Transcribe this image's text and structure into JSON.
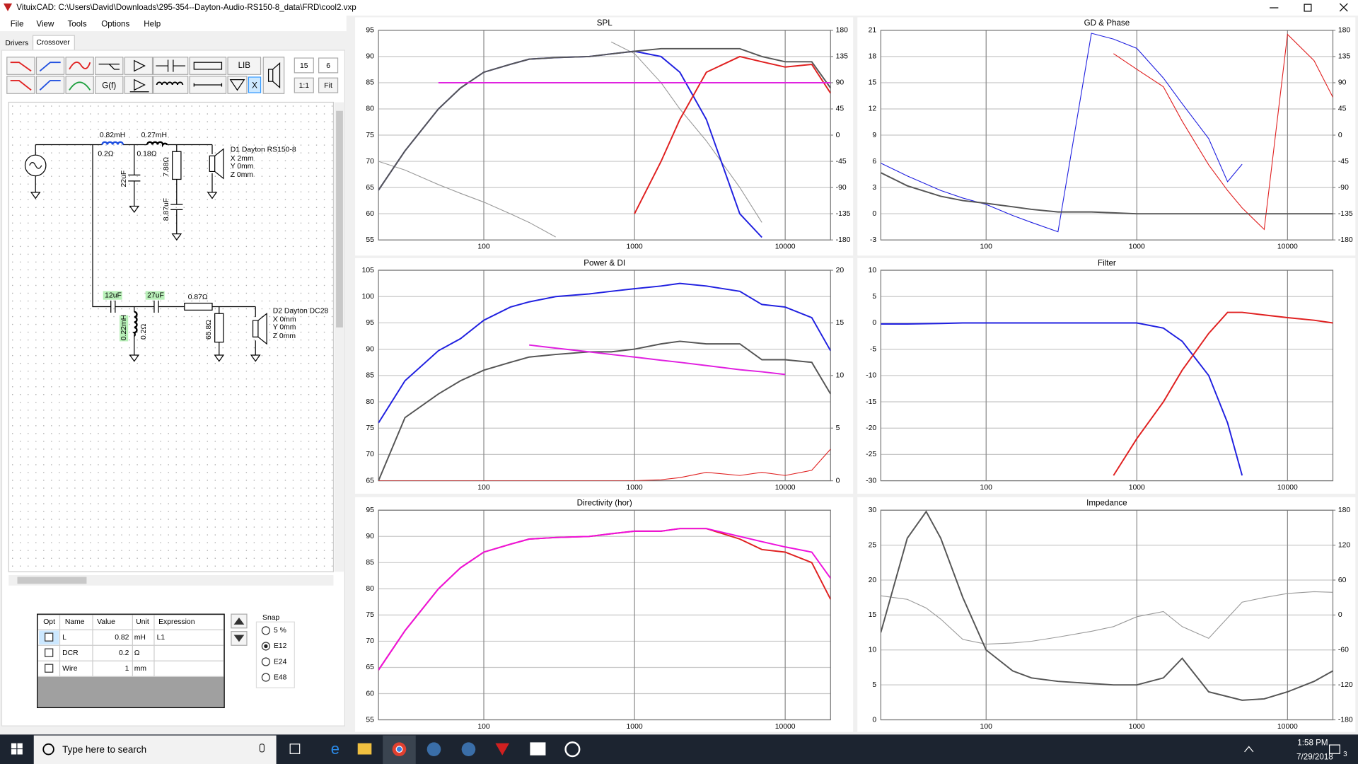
{
  "window": {
    "title": "VituixCAD: C:\\Users\\David\\Downloads\\295-354--Dayton-Audio-RS150-8_data\\FRD\\cool2.vxp"
  },
  "menu": [
    "File",
    "View",
    "Tools",
    "Options",
    "Help"
  ],
  "tabs": [
    "Drivers",
    "Crossover"
  ],
  "toolbar": {
    "buttons": [
      "G(f)",
      "LIB",
      "X"
    ],
    "fields": [
      15,
      6
    ],
    "zoom": [
      "1:1",
      "Fit"
    ]
  },
  "schematic": {
    "labels": [
      "0.82mH",
      "0.2Ω",
      "0.27mH",
      "0.18Ω",
      "22uF",
      "7.88Ω",
      "8.87uF",
      "D1 Dayton RS150-8",
      "X 2mm",
      "Y 0mm",
      "Z 0mm",
      "12uF",
      "27uF",
      "0.87Ω",
      "0.22mH",
      "0.2Ω",
      "65.8Ω",
      "D2 Dayton DC28",
      "X 0mm",
      "Y 0mm",
      "Z 0mm"
    ]
  },
  "table": {
    "headers": [
      "Opt",
      "Name",
      "Value",
      "Unit",
      "Expression"
    ],
    "rows": [
      {
        "name": "L",
        "value": 0.82,
        "unit": "mH",
        "expression": "L1"
      },
      {
        "name": "DCR",
        "value": 0.2,
        "unit": "Ω"
      },
      {
        "name": "Wire",
        "value": 1,
        "unit": "mm"
      }
    ]
  },
  "snap": {
    "title": "Snap",
    "options": [
      "5 %",
      "E12",
      "E24",
      "E48"
    ],
    "selected": 1
  },
  "charts": [
    {
      "type": "line",
      "title": "SPL",
      "xscale": "log",
      "xlim": [
        20,
        20000
      ],
      "xticks": [
        100,
        1000,
        10000
      ],
      "ylim": [
        55,
        95
      ],
      "yticks": [
        55,
        60,
        65,
        70,
        75,
        80,
        85,
        90,
        95
      ],
      "y2lim": [
        -180,
        180
      ],
      "y2ticks": [
        -180,
        -135,
        -90,
        -45,
        0,
        45,
        90,
        135,
        180
      ],
      "x": [
        20,
        30,
        50,
        70,
        100,
        150,
        200,
        300,
        500,
        700,
        1000,
        1500,
        2000,
        3000,
        5000,
        7000,
        10000,
        15000,
        20000
      ],
      "series": [
        {
          "color": "#999999",
          "axis": "y2",
          "values": [
            -45,
            -60,
            -85,
            -100,
            -115,
            -135,
            -150,
            -175,
            null,
            160,
            140,
            90,
            45,
            -10,
            -90,
            -150,
            null,
            null,
            null
          ]
        },
        {
          "color": "#2020e0",
          "values": [
            64.5,
            72,
            80,
            84,
            87,
            88.5,
            89.5,
            89.8,
            90,
            90.5,
            91,
            90,
            87,
            78,
            60,
            55.5,
            null,
            null,
            null
          ]
        },
        {
          "color": "#e02020",
          "values": [
            null,
            null,
            null,
            null,
            null,
            null,
            null,
            null,
            null,
            null,
            60,
            70,
            78,
            87,
            90,
            89,
            88,
            88.5,
            83
          ]
        },
        {
          "color": "#555555",
          "values": [
            64.5,
            72,
            80,
            84,
            87,
            88.5,
            89.5,
            89.8,
            90,
            90.5,
            91,
            91.5,
            91.5,
            91.5,
            91.5,
            90,
            89,
            89,
            84
          ]
        },
        {
          "color": "#e020e0",
          "values": [
            null,
            null,
            85,
            85,
            85,
            85,
            85,
            85,
            85,
            85,
            85,
            85,
            85,
            85,
            85,
            85,
            85,
            85,
            85
          ]
        }
      ]
    },
    {
      "type": "line",
      "title": "GD & Phase",
      "xscale": "log",
      "xlim": [
        20,
        20000
      ],
      "xticks": [
        100,
        1000,
        10000
      ],
      "ylim": [
        -3,
        21
      ],
      "yticks": [
        -3,
        0,
        3,
        6,
        9,
        12,
        15,
        18,
        21
      ],
      "y2lim": [
        -180,
        180
      ],
      "y2ticks": [
        -180,
        -135,
        -90,
        -45,
        0,
        45,
        90,
        135,
        180
      ],
      "x": [
        20,
        30,
        50,
        70,
        100,
        150,
        200,
        300,
        500,
        700,
        1000,
        1500,
        2000,
        3000,
        4000,
        5000,
        7000,
        10000,
        15000,
        20000
      ],
      "series": [
        {
          "color": "#2020e0",
          "axis": "y2",
          "values": [
            -48,
            -70,
            -95,
            -108,
            -119,
            -138,
            -150,
            -166,
            175,
            165,
            149,
            98,
            54,
            -6,
            -80,
            -50,
            null,
            null,
            null,
            null
          ]
        },
        {
          "color": "#e02020",
          "axis": "y2",
          "values": [
            null,
            null,
            null,
            null,
            null,
            null,
            null,
            null,
            null,
            140,
            113,
            83,
            24,
            -51,
            -95,
            -125,
            -162,
            173,
            128,
            65
          ]
        },
        {
          "color": "#555555",
          "values": [
            4.7,
            3.2,
            2,
            1.5,
            1.2,
            0.8,
            0.5,
            0.2,
            0.2,
            0.1,
            0,
            0,
            0,
            0,
            0,
            0,
            0,
            0,
            0,
            0
          ]
        }
      ]
    },
    {
      "type": "line",
      "title": "Power & DI",
      "xscale": "log",
      "xlim": [
        20,
        20000
      ],
      "xticks": [
        100,
        1000,
        10000
      ],
      "ylim": [
        65,
        105
      ],
      "yticks": [
        65,
        70,
        75,
        80,
        85,
        90,
        95,
        100,
        105
      ],
      "y2lim": [
        0,
        20
      ],
      "y2ticks": [
        0,
        5,
        10,
        15,
        20
      ],
      "x": [
        20,
        30,
        50,
        70,
        100,
        150,
        200,
        300,
        500,
        700,
        1000,
        1500,
        2000,
        3000,
        5000,
        7000,
        10000,
        15000,
        20000
      ],
      "series": [
        {
          "color": "#2020e0",
          "values": [
            76,
            84,
            89.7,
            92,
            95.5,
            98,
            99,
            100,
            100.5,
            101,
            101.5,
            102,
            102.5,
            102,
            101,
            98.5,
            98,
            96,
            89.7
          ]
        },
        {
          "color": "#555555",
          "values": [
            65,
            77,
            81.5,
            84,
            86,
            87.5,
            88.5,
            89,
            89.5,
            89.5,
            90,
            91,
            91.5,
            91,
            91,
            88,
            88,
            87.5,
            81.5
          ]
        },
        {
          "color": "#e02020",
          "axis": "y2",
          "values": [
            0,
            0,
            0,
            0,
            0,
            0,
            0,
            0,
            0,
            0,
            0,
            0.1,
            0.3,
            0.8,
            0.5,
            0.8,
            0.5,
            1,
            3
          ]
        },
        {
          "color": "#e020e0",
          "values": [
            null,
            null,
            null,
            null,
            null,
            null,
            90.8,
            90.2,
            89.5,
            89,
            88.5,
            87.9,
            87.5,
            86.9,
            86.1,
            85.7,
            85.2,
            null,
            null
          ]
        }
      ]
    },
    {
      "type": "line",
      "title": "Filter",
      "xscale": "log",
      "xlim": [
        20,
        20000
      ],
      "xticks": [
        100,
        1000,
        10000
      ],
      "ylim": [
        -30,
        10
      ],
      "yticks": [
        -30,
        -25,
        -20,
        -15,
        -10,
        -5,
        0,
        5,
        10
      ],
      "x": [
        20,
        30,
        50,
        70,
        100,
        150,
        200,
        300,
        500,
        700,
        1000,
        1500,
        2000,
        3000,
        4000,
        5000,
        7000,
        10000,
        15000,
        20000
      ],
      "series": [
        {
          "color": "#2020e0",
          "values": [
            -0.2,
            -0.2,
            -0.1,
            0,
            0,
            0,
            0,
            0,
            0,
            0,
            0,
            -1,
            -3.5,
            -10,
            -19,
            -29,
            null,
            null,
            null,
            null
          ]
        },
        {
          "color": "#e02020",
          "values": [
            null,
            null,
            null,
            null,
            null,
            null,
            null,
            null,
            null,
            -29,
            -22,
            -15,
            -9,
            -2,
            2,
            2,
            1.5,
            1,
            0.5,
            0
          ]
        }
      ]
    },
    {
      "type": "line",
      "title": "Directivity (hor)",
      "xscale": "log",
      "xlim": [
        20,
        20000
      ],
      "xticks": [
        100,
        1000,
        10000
      ],
      "ylim": [
        55,
        95
      ],
      "yticks": [
        55,
        60,
        65,
        70,
        75,
        80,
        85,
        90,
        95
      ],
      "x": [
        20,
        30,
        50,
        70,
        100,
        150,
        200,
        300,
        500,
        700,
        1000,
        1500,
        2000,
        3000,
        5000,
        7000,
        10000,
        15000,
        20000
      ],
      "series": [
        {
          "color": "#e02020",
          "values": [
            64.5,
            72,
            80,
            84,
            87,
            88.5,
            89.5,
            89.8,
            90,
            90.5,
            91,
            91,
            91.5,
            91.5,
            89.5,
            87.5,
            87,
            85,
            78
          ]
        },
        {
          "color": "#ee10dd",
          "values": [
            64.5,
            72,
            80,
            84,
            87,
            88.5,
            89.5,
            89.8,
            90,
            90.5,
            91,
            91,
            91.5,
            91.5,
            90,
            89,
            88,
            87,
            82
          ]
        }
      ]
    },
    {
      "type": "line",
      "title": "Impedance",
      "xscale": "log",
      "xlim": [
        20,
        20000
      ],
      "xticks": [
        100,
        1000,
        10000
      ],
      "ylim": [
        0,
        30
      ],
      "yticks": [
        0,
        5,
        10,
        15,
        20,
        25,
        30
      ],
      "y2lim": [
        -180,
        180
      ],
      "y2ticks": [
        -180,
        -120,
        -60,
        0,
        60,
        120,
        180
      ],
      "x": [
        20,
        30,
        40,
        50,
        70,
        100,
        150,
        200,
        300,
        500,
        700,
        1000,
        1500,
        2000,
        3000,
        5000,
        7000,
        10000,
        15000,
        20000
      ],
      "series": [
        {
          "color": "#999999",
          "axis": "y2",
          "values": [
            33,
            27,
            12,
            -7,
            -42,
            -50,
            -48,
            -45,
            -38,
            -28,
            -20,
            -3,
            6,
            -20,
            -40,
            22,
            30,
            37,
            40,
            39
          ]
        },
        {
          "color": "#555555",
          "values": [
            12.5,
            26,
            29.8,
            26,
            17.5,
            10,
            7,
            6,
            5.5,
            5.2,
            5,
            5,
            6,
            8.8,
            4,
            2.8,
            3,
            4,
            5.5,
            7
          ]
        }
      ]
    }
  ],
  "taskbar": {
    "search": "Type here to search",
    "time": "1:58 PM",
    "date": "7/29/2018",
    "notifications": 3
  }
}
